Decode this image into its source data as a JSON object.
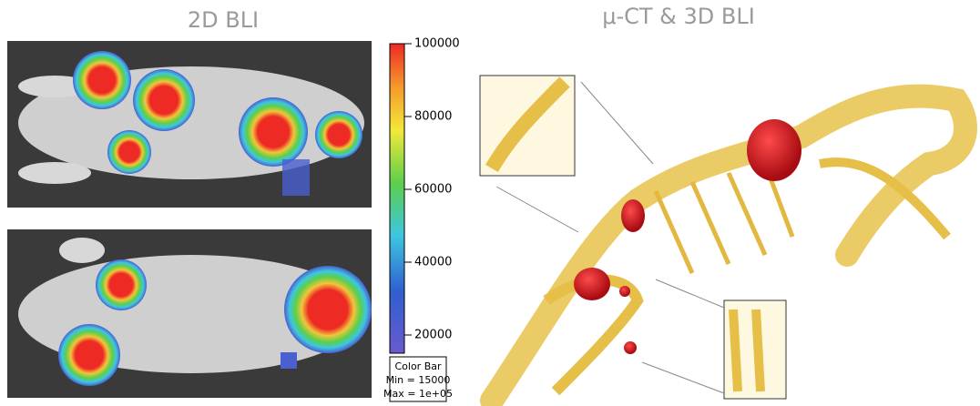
{
  "titles": {
    "left": "2D BLI",
    "right": "μ-CT & 3D BLI"
  },
  "colorbar": {
    "lim": [
      15000,
      100000
    ],
    "ticks": [
      100000,
      80000,
      60000,
      40000,
      20000
    ],
    "caption": [
      "Color Bar",
      "Min = 15000",
      "Max = 1e+05"
    ]
  }
}
